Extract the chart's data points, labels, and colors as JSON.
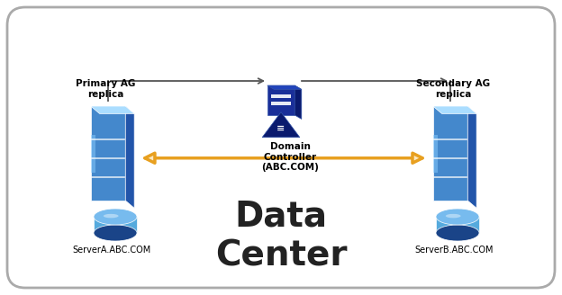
{
  "bg_color": "#ffffff",
  "border_color": "#aaaaaa",
  "title_data_center": "Data\nCenter",
  "title_dc_fontsize": 28,
  "domain_controller_label": "Domain\nController\n(ABC.COM)",
  "primary_label": "Primary AG\nreplica",
  "secondary_label": "Secondary AG\nreplica",
  "server_a_label": "ServerA.ABC.COM",
  "server_b_label": "ServerB.ABC.COM",
  "server_body_color_dark": "#2255aa",
  "server_body_color_mid": "#4488cc",
  "server_body_color_light": "#aaddff",
  "dc_body_color_dark": "#0a1a6e",
  "dc_body_color_mid": "#1a2f99",
  "db_color_dark": "#1a4488",
  "db_color_light": "#55aadd",
  "arrow_color": "#e8a020",
  "arrow_fill": "#fde8c0",
  "line_color": "#555555"
}
